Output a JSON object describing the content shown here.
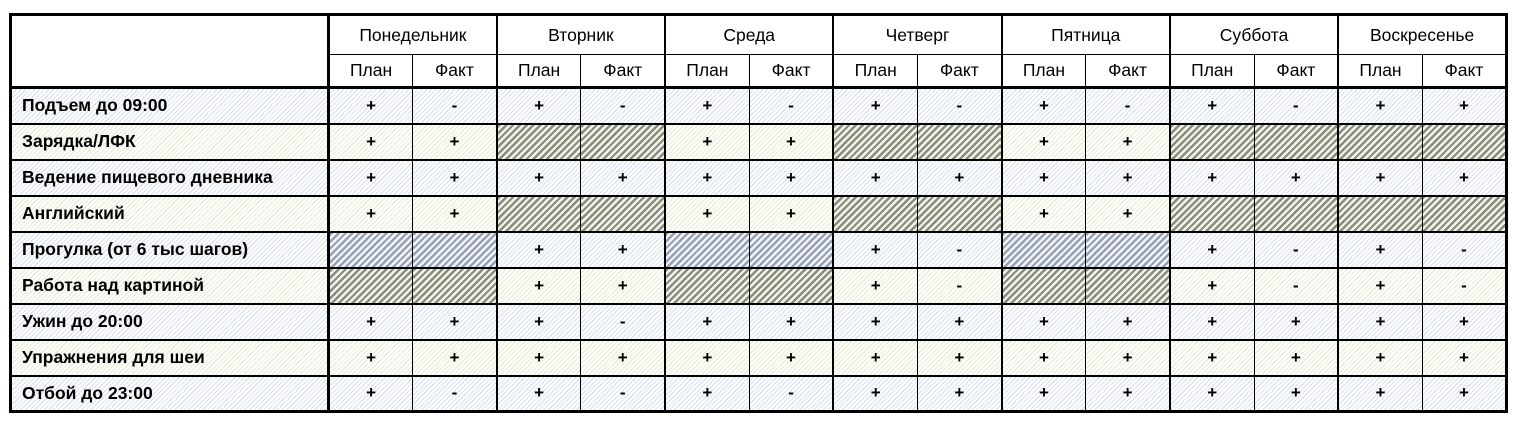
{
  "table": {
    "corner": "",
    "days": [
      "Понедельник",
      "Вторник",
      "Среда",
      "Четверг",
      "Пятница",
      "Суббота",
      "Воскресенье"
    ],
    "sub": [
      "План",
      "Факт"
    ],
    "symbols": {
      "done": "+",
      "missed": "-",
      "not_applicable": "na"
    },
    "colors": {
      "row_tint_blue_stripe": "#d9e4f0",
      "row_tint_cream_stripe": "#e9ecd7",
      "blocked_blue_stripe": "#98a1b4",
      "blocked_olive_stripe": "#878e7a",
      "grid": "#000000"
    },
    "rows": [
      {
        "label": "Подъем до 09:00",
        "cells": [
          "+",
          "-",
          "+",
          "-",
          "+",
          "-",
          "+",
          "-",
          "+",
          "-",
          "+",
          "-",
          "+",
          "+"
        ]
      },
      {
        "label": "Зарядка/ЛФК",
        "cells": [
          "+",
          "+",
          "na",
          "na",
          "+",
          "+",
          "na",
          "na",
          "+",
          "+",
          "na",
          "na",
          "na",
          "na"
        ]
      },
      {
        "label": "Ведение пищевого дневника",
        "cells": [
          "+",
          "+",
          "+",
          "+",
          "+",
          "+",
          "+",
          "+",
          "+",
          "+",
          "+",
          "+",
          "+",
          "+"
        ]
      },
      {
        "label": "Английский",
        "cells": [
          "+",
          "+",
          "na",
          "na",
          "+",
          "+",
          "na",
          "na",
          "+",
          "+",
          "na",
          "na",
          "na",
          "na"
        ]
      },
      {
        "label": "Прогулка (от 6 тыс шагов)",
        "cells": [
          "na",
          "na",
          "+",
          "+",
          "na",
          "na",
          "+",
          "-",
          "na",
          "na",
          "+",
          "-",
          "+",
          "-"
        ]
      },
      {
        "label": "Работа над картиной",
        "cells": [
          "na",
          "na",
          "+",
          "+",
          "na",
          "na",
          "+",
          "-",
          "na",
          "na",
          "+",
          "-",
          "+",
          "-"
        ]
      },
      {
        "label": "Ужин до 20:00",
        "cells": [
          "+",
          "+",
          "+",
          "-",
          "+",
          "+",
          "+",
          "+",
          "+",
          "+",
          "+",
          "+",
          "+",
          "+"
        ]
      },
      {
        "label": "Упражнения для шеи",
        "cells": [
          "+",
          "+",
          "+",
          "+",
          "+",
          "+",
          "+",
          "+",
          "+",
          "+",
          "+",
          "+",
          "+",
          "+"
        ]
      },
      {
        "label": "Отбой до 23:00",
        "cells": [
          "+",
          "-",
          "+",
          "-",
          "+",
          "-",
          "+",
          "+",
          "+",
          "+",
          "+",
          "+",
          "+",
          "+"
        ]
      }
    ]
  }
}
